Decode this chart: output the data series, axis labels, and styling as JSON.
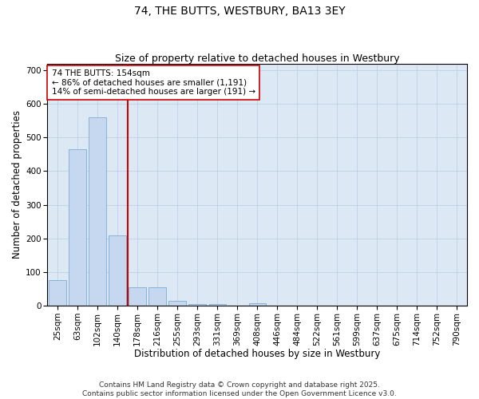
{
  "title": "74, THE BUTTS, WESTBURY, BA13 3EY",
  "subtitle": "Size of property relative to detached houses in Westbury",
  "xlabel": "Distribution of detached houses by size in Westbury",
  "ylabel": "Number of detached properties",
  "categories": [
    "25sqm",
    "63sqm",
    "102sqm",
    "140sqm",
    "178sqm",
    "216sqm",
    "255sqm",
    "293sqm",
    "331sqm",
    "369sqm",
    "408sqm",
    "446sqm",
    "484sqm",
    "522sqm",
    "561sqm",
    "599sqm",
    "637sqm",
    "675sqm",
    "714sqm",
    "752sqm",
    "790sqm"
  ],
  "values": [
    75,
    465,
    560,
    208,
    55,
    55,
    15,
    5,
    5,
    0,
    8,
    0,
    0,
    0,
    0,
    0,
    0,
    0,
    0,
    0,
    0
  ],
  "bar_color": "#c5d8f0",
  "bar_edge_color": "#7bacd4",
  "vline_index": 4,
  "vline_color": "#cc0000",
  "annotation_text": "74 THE BUTTS: 154sqm\n← 86% of detached houses are smaller (1,191)\n14% of semi-detached houses are larger (191) →",
  "annotation_box_color": "#ffffff",
  "annotation_box_edge_color": "#cc0000",
  "ylim": [
    0,
    720
  ],
  "yticks": [
    0,
    100,
    200,
    300,
    400,
    500,
    600,
    700
  ],
  "background_color": "#dde8f5",
  "grid_color": "#b8cce4",
  "footer_text": "Contains HM Land Registry data © Crown copyright and database right 2025.\nContains public sector information licensed under the Open Government Licence v3.0.",
  "title_fontsize": 10,
  "subtitle_fontsize": 9,
  "axis_label_fontsize": 8.5,
  "tick_fontsize": 7.5,
  "annotation_fontsize": 7.5,
  "footer_fontsize": 6.5
}
